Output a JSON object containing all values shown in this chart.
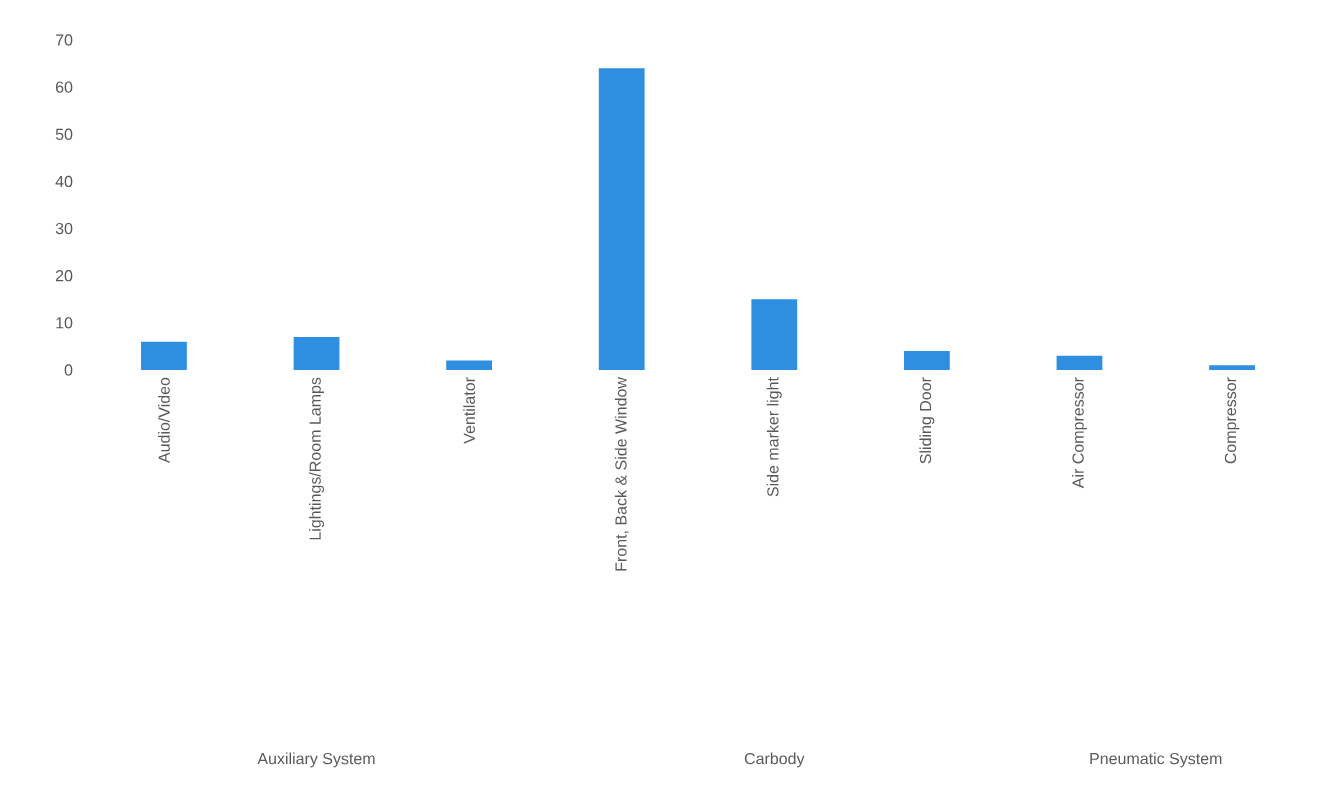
{
  "chart_data": {
    "type": "bar",
    "categories": [
      "Audio/Video",
      "Lightings/Room Lamps",
      "Ventilator",
      "Front, Back & Side Window",
      "Side marker light",
      "Sliding Door",
      "Air Compressor",
      "Compressor"
    ],
    "values": [
      6,
      7,
      2,
      64,
      15,
      4,
      3,
      1
    ],
    "color": "#2e8ee0",
    "ylim": [
      0,
      70
    ],
    "yticks": [
      0,
      10,
      20,
      30,
      40,
      50,
      60,
      70
    ],
    "annotations": [
      "Auxiliary System",
      "Carbody",
      "Pneumatic System"
    ]
  }
}
